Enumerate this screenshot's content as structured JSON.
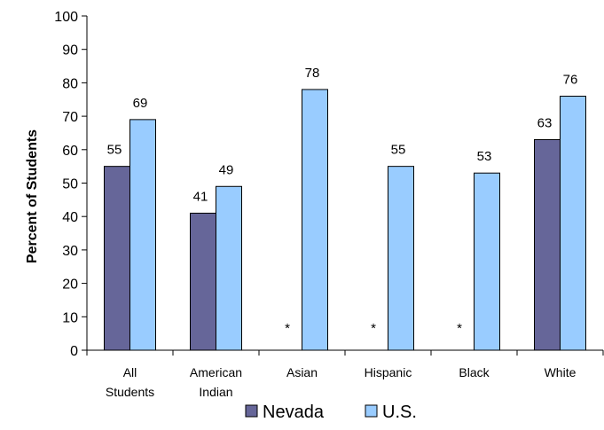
{
  "chart_data": {
    "type": "bar",
    "title": "",
    "xlabel": "",
    "ylabel": "Percent of Students",
    "ylim": [
      0,
      100
    ],
    "yticks": [
      0,
      10,
      20,
      30,
      40,
      50,
      60,
      70,
      80,
      90,
      100
    ],
    "categories": [
      [
        "All",
        "Students"
      ],
      [
        "American",
        "Indian"
      ],
      [
        "Asian"
      ],
      [
        "Hispanic"
      ],
      [
        "Black"
      ],
      [
        "White"
      ]
    ],
    "series": [
      {
        "name": "Nevada",
        "color": "#666699",
        "values": [
          55,
          41,
          null,
          null,
          null,
          63
        ],
        "labels": [
          "55",
          "41",
          "*",
          "*",
          "*",
          "63"
        ]
      },
      {
        "name": "U.S.",
        "color": "#99CCFF",
        "values": [
          69,
          49,
          78,
          55,
          53,
          76
        ],
        "labels": [
          "69",
          "49",
          "78",
          "55",
          "53",
          "76"
        ]
      }
    ],
    "grid": false,
    "legend_position": "bottom"
  }
}
